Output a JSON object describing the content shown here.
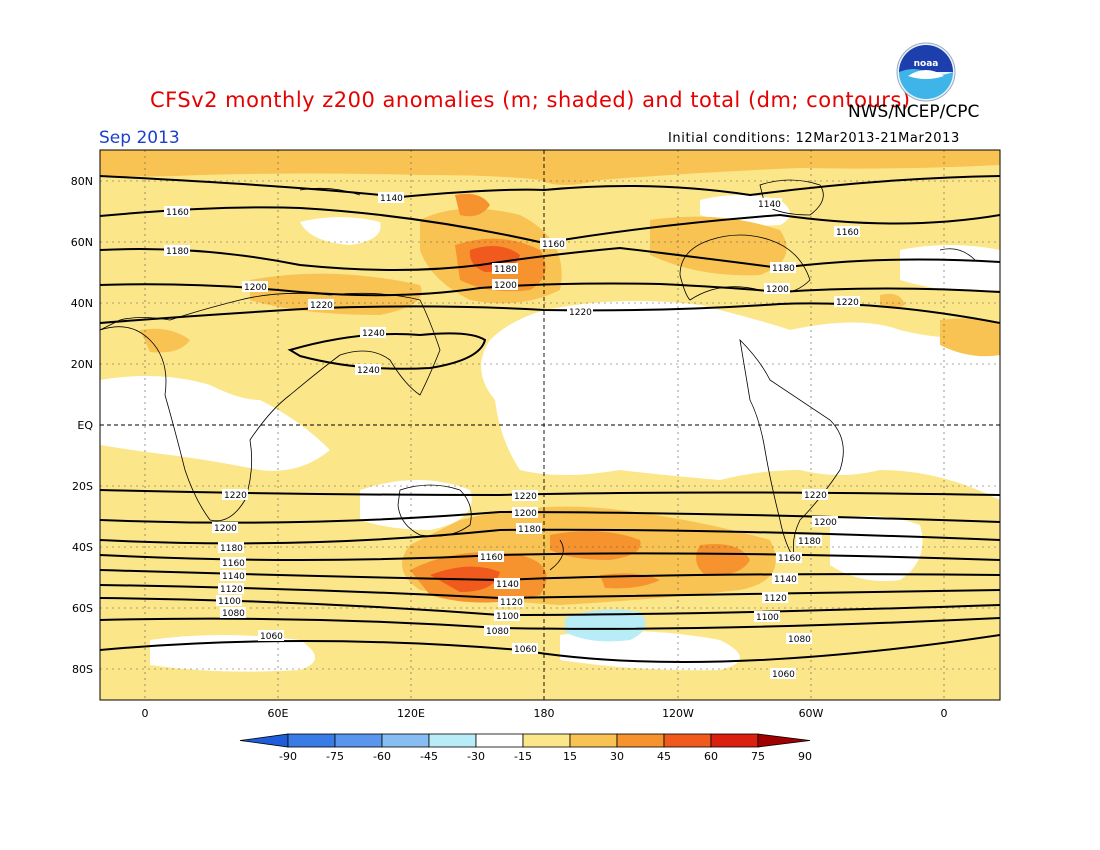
{
  "title": "CFSv2 monthly z200 anomalies (m; shaded) and total (dm; contours)",
  "agency": "NWS/NCEP/CPC",
  "month": "Sep 2013",
  "initial_conditions": "Initial conditions: 12Mar2013-21Mar2013",
  "logo": {
    "icon": "noaa-logo",
    "text": "noaa"
  },
  "lat_labels": [
    "80N",
    "60N",
    "40N",
    "20N",
    "EQ",
    "20S",
    "40S",
    "60S",
    "80S"
  ],
  "lon_labels": [
    "0",
    "60E",
    "120E",
    "180",
    "120W",
    "60W",
    "0"
  ],
  "colorbar": {
    "ticks": [
      "-90",
      "-75",
      "-60",
      "-45",
      "-30",
      "-15",
      "15",
      "30",
      "45",
      "60",
      "75",
      "90"
    ],
    "colors": [
      "#1e5cd9",
      "#3a7ce6",
      "#5a96ee",
      "#88bdf3",
      "#b8ecf6",
      "#ffffff",
      "#fce68a",
      "#f8c352",
      "#f6932e",
      "#f05a1c",
      "#dc2010",
      "#a00000"
    ]
  },
  "contours": [
    {
      "label": "1140",
      "lat": 70
    },
    {
      "label": "1160",
      "lat": 64
    },
    {
      "label": "1180",
      "lat": 54
    },
    {
      "label": "1200",
      "lat": 44
    },
    {
      "label": "1220",
      "lat": 37
    },
    {
      "label": "1240",
      "lat": 22
    },
    {
      "label": "1220",
      "lat": -23
    },
    {
      "label": "1200",
      "lat": -31
    },
    {
      "label": "1180",
      "lat": -39
    },
    {
      "label": "1160",
      "lat": -44
    },
    {
      "label": "1140",
      "lat": -49
    },
    {
      "label": "1120",
      "lat": -54
    },
    {
      "label": "1100",
      "lat": -59
    },
    {
      "label": "1080",
      "lat": -63
    },
    {
      "label": "1060",
      "lat": -71
    }
  ]
}
